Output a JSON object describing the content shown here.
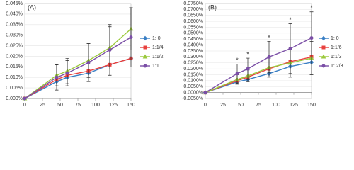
{
  "chart_data": [
    {
      "type": "line",
      "title": "(A)",
      "x": [
        0,
        45,
        60,
        90,
        120,
        150
      ],
      "xlim": [
        0,
        150
      ],
      "xticks": [
        0,
        25,
        50,
        75,
        100,
        125,
        150
      ],
      "ylim": [
        0,
        0.045
      ],
      "yticks": [
        {
          "value": 0,
          "label": "0.000%"
        },
        {
          "value": 0.005,
          "label": "0.005%"
        },
        {
          "value": 0.01,
          "label": "0.010%"
        },
        {
          "value": 0.015,
          "label": "0.015%"
        },
        {
          "value": 0.02,
          "label": "0.020%"
        },
        {
          "value": 0.025,
          "label": "0.025%"
        },
        {
          "value": 0.03,
          "label": "0.030%"
        },
        {
          "value": 0.035,
          "label": "0.035%"
        },
        {
          "value": 0.04,
          "label": "0.040%"
        },
        {
          "value": 0.045,
          "label": "0.045%"
        }
      ],
      "series": [
        {
          "name": "1: 0",
          "color": "#3a7fc4",
          "marker": "diamond",
          "values": [
            0,
            0.008,
            0.01,
            0.012,
            0.016,
            0.019
          ]
        },
        {
          "name": "1:1/4",
          "color": "#e8413e",
          "marker": "square",
          "values": [
            0,
            0.009,
            0.011,
            0.013,
            0.016,
            0.019
          ]
        },
        {
          "name": "1:1/2",
          "color": "#9bc93c",
          "marker": "triangle",
          "values": [
            0,
            0.011,
            0.013,
            0.018,
            0.024,
            0.033
          ],
          "errors": [
            0,
            0.005,
            0.006,
            0.008,
            0.01,
            0.01
          ]
        },
        {
          "name": "1:1",
          "color": "#7b4fa6",
          "marker": "circle",
          "values": [
            0,
            0.01,
            0.012,
            0.017,
            0.023,
            0.029
          ],
          "errors": [
            0,
            0.006,
            0.006,
            0.009,
            0.012,
            0.014
          ]
        }
      ]
    },
    {
      "type": "line",
      "title": "(B)",
      "x": [
        0,
        45,
        60,
        90,
        120,
        150
      ],
      "xlim": [
        0,
        150
      ],
      "xticks": [
        0,
        25,
        50,
        75,
        100,
        125,
        150
      ],
      "ylim": [
        -0.005,
        0.075
      ],
      "yticks": [
        {
          "value": -0.005,
          "label": "-0.0050%"
        },
        {
          "value": 0,
          "label": "0.0000%"
        },
        {
          "value": 0.005,
          "label": "0.0050%"
        },
        {
          "value": 0.01,
          "label": "0.0100%"
        },
        {
          "value": 0.015,
          "label": "0.0150%"
        },
        {
          "value": 0.02,
          "label": "0.0200%"
        },
        {
          "value": 0.025,
          "label": "0.0250%"
        },
        {
          "value": 0.03,
          "label": "0.0300%"
        },
        {
          "value": 0.035,
          "label": "0.0350%"
        },
        {
          "value": 0.04,
          "label": "0.0400%"
        },
        {
          "value": 0.045,
          "label": "0.0450%"
        },
        {
          "value": 0.05,
          "label": "0.0500%"
        },
        {
          "value": 0.055,
          "label": "0.0550%"
        },
        {
          "value": 0.06,
          "label": "0.0600%"
        },
        {
          "value": 0.065,
          "label": "0.0650%"
        },
        {
          "value": 0.07,
          "label": "0.0700%"
        },
        {
          "value": 0.075,
          "label": "0.0750%"
        }
      ],
      "series": [
        {
          "name": "1: 0",
          "color": "#3a7fc4",
          "marker": "diamond",
          "values": [
            0,
            0.009,
            0.011,
            0.016,
            0.022,
            0.0255
          ]
        },
        {
          "name": "1:1/6",
          "color": "#e8413e",
          "marker": "square",
          "values": [
            0,
            0.01,
            0.013,
            0.02,
            0.026,
            0.03
          ]
        },
        {
          "name": "1:1/3",
          "color": "#9bc93c",
          "marker": "triangle",
          "values": [
            0,
            0.011,
            0.014,
            0.021,
            0.025,
            0.029
          ],
          "errors": [
            0,
            0.004,
            0.005,
            0.008,
            0.012,
            0.014
          ]
        },
        {
          "name": "1: 2/3",
          "color": "#7b4fa6",
          "marker": "circle",
          "values": [
            0,
            0.016,
            0.02,
            0.03,
            0.037,
            0.046
          ],
          "errors": [
            0,
            0.008,
            0.009,
            0.013,
            0.021,
            0.022
          ]
        }
      ],
      "annotations": [
        {
          "text": "*",
          "x": 45,
          "y": 0.027
        },
        {
          "text": "*",
          "x": 60,
          "y": 0.032
        },
        {
          "text": "*",
          "x": 90,
          "y": 0.046
        },
        {
          "text": "*",
          "x": 120,
          "y": 0.061
        },
        {
          "text": "*",
          "x": 150,
          "y": 0.071
        }
      ]
    }
  ]
}
